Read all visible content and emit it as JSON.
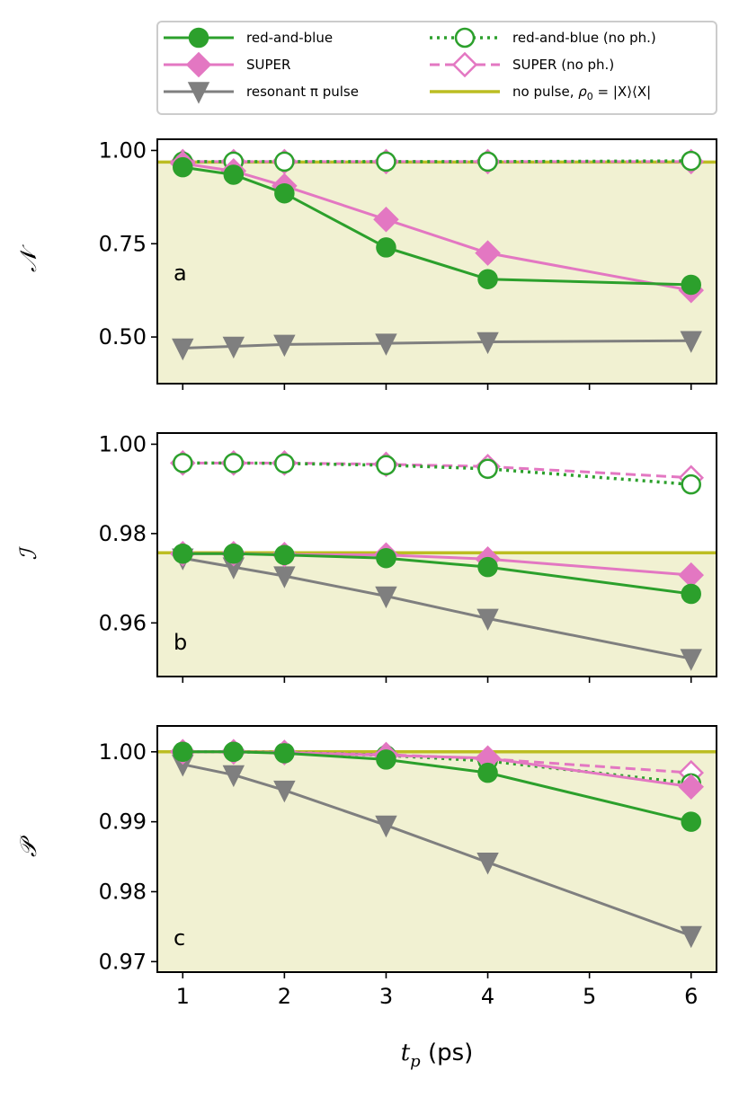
{
  "chart_data": {
    "type": "line",
    "x": [
      1,
      1.5,
      2,
      3,
      4,
      6
    ],
    "xlabel_main": "t",
    "xlabel_sub": "p",
    "xlabel_units": "(ps)",
    "xticks": [
      "1",
      "2",
      "3",
      "4",
      "5",
      "6"
    ],
    "xtick_values": [
      1,
      2,
      3,
      4,
      5,
      6
    ],
    "xlim": [
      0.75,
      6.25
    ],
    "legend": {
      "position": "top",
      "entries": [
        {
          "key": "rb",
          "label": "red-and-blue"
        },
        {
          "key": "rb_noph",
          "label": "red-and-blue (no ph.)"
        },
        {
          "key": "super",
          "label": "SUPER"
        },
        {
          "key": "super_noph",
          "label": "SUPER (no ph.)"
        },
        {
          "key": "pi",
          "label": "resonant π pulse"
        },
        {
          "key": "nopulse",
          "label": "no pulse, ρ₀ = |X⟩⟨X|"
        }
      ],
      "nopulse_prefix": "no pulse,",
      "nopulse_rho": "ρ",
      "nopulse_sub": "0",
      "nopulse_eq": " = |X⟩⟨X|"
    },
    "colors": {
      "green": "#2ca02c",
      "pink": "#e377c2",
      "gray": "#7f7f7f",
      "olive": "#bcbd22",
      "shade": "#f1f1d2"
    },
    "panels": [
      {
        "letter": "a",
        "ylabel": "𝒩",
        "ylim": [
          0.375,
          1.03
        ],
        "yticks": [
          0.5,
          0.75,
          1.0
        ],
        "ytick_labels": [
          "0.50",
          "0.75",
          "1.00"
        ],
        "nopulse": 0.969,
        "series": {
          "rb": [
            0.955,
            0.935,
            0.885,
            0.74,
            0.655,
            0.64
          ],
          "super": [
            0.965,
            0.945,
            0.905,
            0.815,
            0.725,
            0.625
          ],
          "pi": [
            0.47,
            0.475,
            0.48,
            0.483,
            0.487,
            0.49
          ],
          "rb_noph": [
            0.97,
            0.97,
            0.97,
            0.97,
            0.97,
            0.972
          ],
          "super_noph": [
            0.97,
            0.97,
            0.97,
            0.97,
            0.97,
            0.97
          ]
        }
      },
      {
        "letter": "b",
        "ylabel": "ℐ",
        "ylim": [
          0.948,
          1.0025
        ],
        "yticks": [
          0.96,
          0.98,
          1.0
        ],
        "ytick_labels": [
          "0.96",
          "0.98",
          "1.00"
        ],
        "nopulse": 0.9757,
        "series": {
          "rb": [
            0.9755,
            0.9755,
            0.9752,
            0.9745,
            0.9725,
            0.9665
          ],
          "super": [
            0.9755,
            0.9755,
            0.9753,
            0.9752,
            0.9743,
            0.9707
          ],
          "pi": [
            0.9745,
            0.9725,
            0.9705,
            0.966,
            0.961,
            0.952
          ],
          "rb_noph": [
            0.9958,
            0.9958,
            0.9957,
            0.9953,
            0.9945,
            0.991
          ],
          "super_noph": [
            0.9958,
            0.9958,
            0.9958,
            0.9955,
            0.995,
            0.9925
          ]
        }
      },
      {
        "letter": "c",
        "ylabel": "𝒫",
        "ylim": [
          0.9685,
          1.0037
        ],
        "yticks": [
          0.97,
          0.98,
          0.99,
          1.0
        ],
        "ytick_labels": [
          "0.97",
          "0.98",
          "0.99",
          "1.00"
        ],
        "nopulse": 1.0,
        "series": {
          "rb": [
            1.0,
            1.0,
            0.9998,
            0.9989,
            0.997,
            0.99
          ],
          "super": [
            1.0,
            1.0,
            0.9999,
            0.9995,
            0.9991,
            0.995
          ],
          "pi": [
            0.9982,
            0.9967,
            0.9945,
            0.9895,
            0.9842,
            0.9737
          ],
          "rb_noph": [
            1.0,
            1.0,
            0.9999,
            0.9995,
            0.9987,
            0.9955
          ],
          "super_noph": [
            1.0,
            1.0,
            0.9999,
            0.9996,
            0.999,
            0.997
          ]
        }
      }
    ]
  }
}
